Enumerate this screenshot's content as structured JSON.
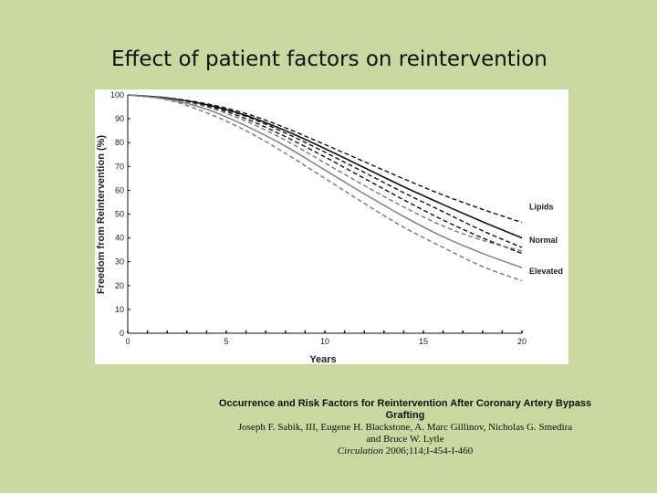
{
  "slide": {
    "title": "Effect of patient factors on reintervention"
  },
  "chart_data": {
    "type": "line",
    "title": "",
    "xlabel": "Years",
    "ylabel": "Freedom from Reintervention (%)",
    "xlim": [
      0,
      20
    ],
    "ylim": [
      0,
      100
    ],
    "xticks": [
      0,
      5,
      10,
      15,
      20
    ],
    "yticks": [
      0,
      10,
      20,
      30,
      40,
      50,
      60,
      70,
      80,
      90,
      100
    ],
    "x": [
      0,
      2,
      4,
      6,
      8,
      10,
      12,
      14,
      16,
      18,
      20
    ],
    "series": [
      {
        "name": "Lipids upper",
        "label": "",
        "style": "dashed",
        "color": "#111111",
        "values": [
          100,
          98.8,
          96.3,
          92.2,
          86.2,
          79.2,
          72.0,
          64.8,
          58.0,
          52.0,
          46.5
        ]
      },
      {
        "name": "Lipids",
        "label": "Lipids",
        "style": "dashed",
        "color": "#111111",
        "values": [
          100,
          98.6,
          95.8,
          91.0,
          84.0,
          76.0,
          67.5,
          59.0,
          51.0,
          43.0,
          36.0
        ]
      },
      {
        "name": "Lipids lower",
        "label": "",
        "style": "dashed",
        "color": "#111111",
        "values": [
          100,
          98.5,
          95.5,
          90.0,
          82.5,
          74.0,
          65.0,
          56.0,
          47.5,
          40.0,
          33.5
        ]
      },
      {
        "name": "Normal",
        "label": "Normal",
        "style": "solid",
        "color": "#111111",
        "values": [
          100,
          98.7,
          95.9,
          91.4,
          85.0,
          77.5,
          69.5,
          61.5,
          54.0,
          46.8,
          40.0
        ]
      },
      {
        "name": "Elevated upper",
        "label": "",
        "style": "dashed",
        "color": "#777777",
        "values": [
          100,
          98.4,
          95.0,
          89.0,
          81.0,
          71.5,
          62.0,
          53.0,
          45.0,
          39.0,
          34.5
        ]
      },
      {
        "name": "Elevated",
        "label": "Elevated",
        "style": "solid",
        "color": "#888888",
        "values": [
          100,
          98.2,
          94.0,
          87.0,
          78.5,
          68.5,
          58.5,
          49.0,
          40.5,
          33.5,
          27.5
        ]
      },
      {
        "name": "Elevated lower",
        "label": "",
        "style": "dashed",
        "color": "#777777",
        "values": [
          100,
          98.0,
          92.5,
          85.0,
          75.5,
          65.0,
          54.5,
          44.5,
          36.0,
          28.0,
          22.0
        ]
      }
    ],
    "legend": [
      "Lipids",
      "Normal",
      "Elevated"
    ],
    "legend_position": "right, at line ends"
  },
  "citation": {
    "title": "Occurrence and Risk Factors for Reintervention After Coronary Artery Bypass Grafting",
    "authors_line1": "Joseph F. Sabik, III, Eugene H. Blackstone, A. Marc Gillinov, Nicholas G. Smedira",
    "authors_line2": "and Bruce W. Lytle",
    "journal": "Circulation",
    "reference": "2006;114;I-454-I-460"
  }
}
